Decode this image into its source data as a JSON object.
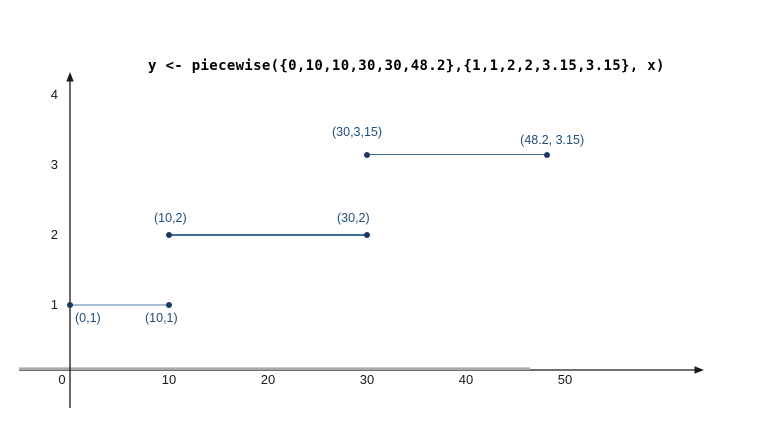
{
  "chart_data": {
    "type": "line",
    "title": "y <- piecewise({0,10,10,30,30,48.2},{1,1,2,2,3.15,3.15}, x)",
    "xlabel": "",
    "ylabel": "",
    "x_ticks": [
      0,
      10,
      20,
      30,
      40,
      50
    ],
    "y_ticks": [
      1,
      2,
      3,
      4
    ],
    "xlim": [
      -5,
      64
    ],
    "ylim": [
      -0.9,
      4.3
    ],
    "grid": false,
    "legend": false,
    "segments": [
      {
        "name": "piece-1",
        "points": [
          [
            0,
            1
          ],
          [
            10,
            1
          ]
        ],
        "labels": [
          "(0,1)",
          "(10,1)"
        ],
        "line_color": "#a9bed5"
      },
      {
        "name": "piece-2",
        "points": [
          [
            10,
            2
          ],
          [
            30,
            2
          ]
        ],
        "labels": [
          "(10,2)",
          "(30,2)"
        ],
        "line_color": "#3f6e9e"
      },
      {
        "name": "piece-3",
        "points": [
          [
            30,
            3.15
          ],
          [
            48.2,
            3.15
          ]
        ],
        "labels": [
          "(30,3,15)",
          "(48.2, 3.15)"
        ],
        "line_color": "#3f6e9e"
      }
    ],
    "colors": {
      "point": "#1f3864",
      "point_label": "#1f4e79",
      "axis": "#1a1a1a",
      "axis_gray": "#a9a9a9",
      "tick_label": "#1a1a1a",
      "title": "#000000",
      "background": "#ffffff"
    }
  }
}
